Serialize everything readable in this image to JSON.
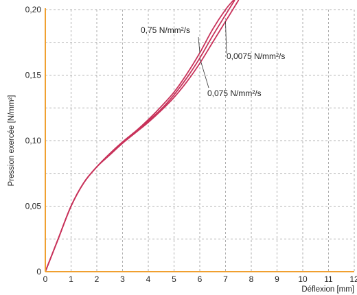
{
  "chart_data": {
    "type": "line",
    "xlabel": "Déflexion [mm]",
    "ylabel": "Pression exercée [N/mm²]",
    "xlim": [
      0,
      12
    ],
    "ylim": [
      0,
      0.2
    ],
    "x_ticks": [
      {
        "value": 0,
        "label": "0"
      },
      {
        "value": 1,
        "label": "1"
      },
      {
        "value": 2,
        "label": "2"
      },
      {
        "value": 3,
        "label": "3"
      },
      {
        "value": 4,
        "label": "4"
      },
      {
        "value": 5,
        "label": "5"
      },
      {
        "value": 6,
        "label": "6"
      },
      {
        "value": 7,
        "label": "7"
      },
      {
        "value": 8,
        "label": "8"
      },
      {
        "value": 9,
        "label": "9"
      },
      {
        "value": 10,
        "label": "10"
      },
      {
        "value": 11,
        "label": "11"
      },
      {
        "value": 12,
        "label": "12"
      }
    ],
    "y_ticks": [
      {
        "value": 0,
        "label": "0"
      },
      {
        "value": 0.05,
        "label": "0,05"
      },
      {
        "value": 0.1,
        "label": "0,10"
      },
      {
        "value": 0.15,
        "label": "0,15"
      },
      {
        "value": 0.2,
        "label": "0,20"
      }
    ],
    "grid": true,
    "axis_color": "#f0a030",
    "grid_color": "#9a9a9a",
    "series_color": "#c8325a",
    "series": [
      {
        "name": "0,75 N/mm²/s",
        "x": [
          0,
          0.5,
          1.0,
          1.5,
          2.0,
          2.5,
          3.0,
          3.5,
          4.0,
          4.5,
          5.0,
          5.5,
          6.0,
          6.5,
          7.0,
          7.3
        ],
        "y": [
          0,
          0.025,
          0.05,
          0.068,
          0.08,
          0.09,
          0.099,
          0.107,
          0.116,
          0.126,
          0.137,
          0.151,
          0.167,
          0.185,
          0.2,
          0.207
        ]
      },
      {
        "name": "0,075 N/mm²/s",
        "x": [
          0,
          0.5,
          1.0,
          1.5,
          2.0,
          2.5,
          3.0,
          3.5,
          4.0,
          4.5,
          5.0,
          5.5,
          6.0,
          6.5,
          7.0,
          7.35
        ],
        "y": [
          0,
          0.025,
          0.05,
          0.068,
          0.08,
          0.09,
          0.099,
          0.107,
          0.115,
          0.124,
          0.135,
          0.148,
          0.163,
          0.18,
          0.196,
          0.207
        ]
      },
      {
        "name": "0,0075 N/mm²/s",
        "x": [
          0,
          0.5,
          1.0,
          1.5,
          2.0,
          2.5,
          3.0,
          3.5,
          4.0,
          4.5,
          5.0,
          5.5,
          6.0,
          6.5,
          7.0,
          7.5
        ],
        "y": [
          0,
          0.025,
          0.05,
          0.068,
          0.08,
          0.089,
          0.098,
          0.106,
          0.114,
          0.123,
          0.133,
          0.145,
          0.159,
          0.175,
          0.191,
          0.207
        ]
      }
    ],
    "annotations": [
      {
        "text": "0,75 N/mm²/s",
        "series": 0
      },
      {
        "text": "0,0075 N/mm²/s",
        "series": 2
      },
      {
        "text": "0,075 N/mm²/s",
        "series": 1
      }
    ]
  }
}
